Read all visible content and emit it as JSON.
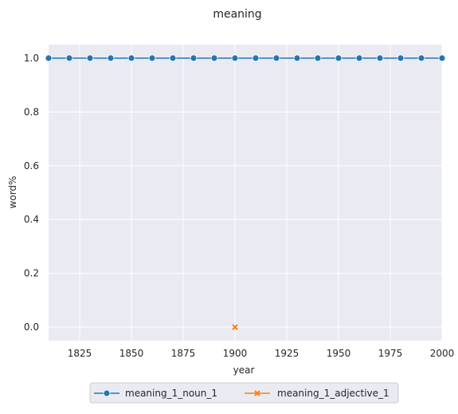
{
  "chart_data": {
    "type": "line",
    "title": "meaning",
    "xlabel": "year",
    "ylabel": "word%",
    "xlim": [
      1810,
      2000
    ],
    "ylim": [
      -0.05,
      1.05
    ],
    "xticks": [
      1825,
      1850,
      1875,
      1900,
      1925,
      1950,
      1975,
      2000
    ],
    "yticks": [
      0.0,
      0.2,
      0.4,
      0.6,
      0.8,
      1.0
    ],
    "ytick_labels": [
      "0.0",
      "0.2",
      "0.4",
      "0.6",
      "0.8",
      "1.0"
    ],
    "grid": true,
    "legend_position": "bottom-center",
    "background": "#eaeaf2",
    "series": [
      {
        "name": "meaning_1_noun_1",
        "color": "#1f77b4",
        "marker": "circle",
        "line": true,
        "x": [
          1810,
          1820,
          1830,
          1840,
          1850,
          1860,
          1870,
          1880,
          1890,
          1900,
          1910,
          1920,
          1930,
          1940,
          1950,
          1960,
          1970,
          1980,
          1990,
          2000
        ],
        "y": [
          1.0,
          1.0,
          1.0,
          1.0,
          1.0,
          1.0,
          1.0,
          1.0,
          1.0,
          1.0,
          1.0,
          1.0,
          1.0,
          1.0,
          1.0,
          1.0,
          1.0,
          1.0,
          1.0,
          1.0
        ]
      },
      {
        "name": "meaning_1_adjective_1",
        "color": "#ff7f0e",
        "marker": "x",
        "line": true,
        "x": [
          1900
        ],
        "y": [
          0.0
        ]
      }
    ]
  }
}
